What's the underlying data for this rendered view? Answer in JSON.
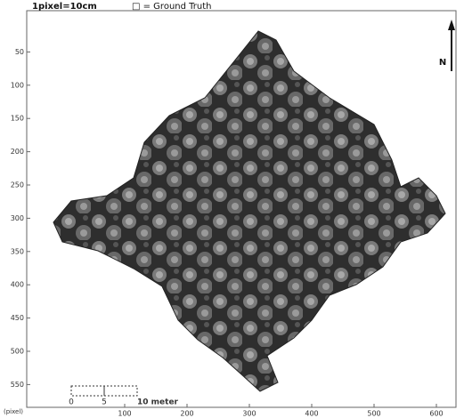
{
  "header": {
    "scale": "1pixel=10cm",
    "legend": "□ = Ground Truth"
  },
  "axes": {
    "y_ticks": [
      50,
      100,
      150,
      200,
      250,
      300,
      350,
      400,
      450,
      500,
      550
    ],
    "x_ticks": [
      100,
      200,
      300,
      400,
      500,
      600
    ],
    "unit": "(pixel)"
  },
  "north": "N",
  "scale_bar": {
    "labels": [
      "0",
      "5",
      "10 meter"
    ]
  }
}
